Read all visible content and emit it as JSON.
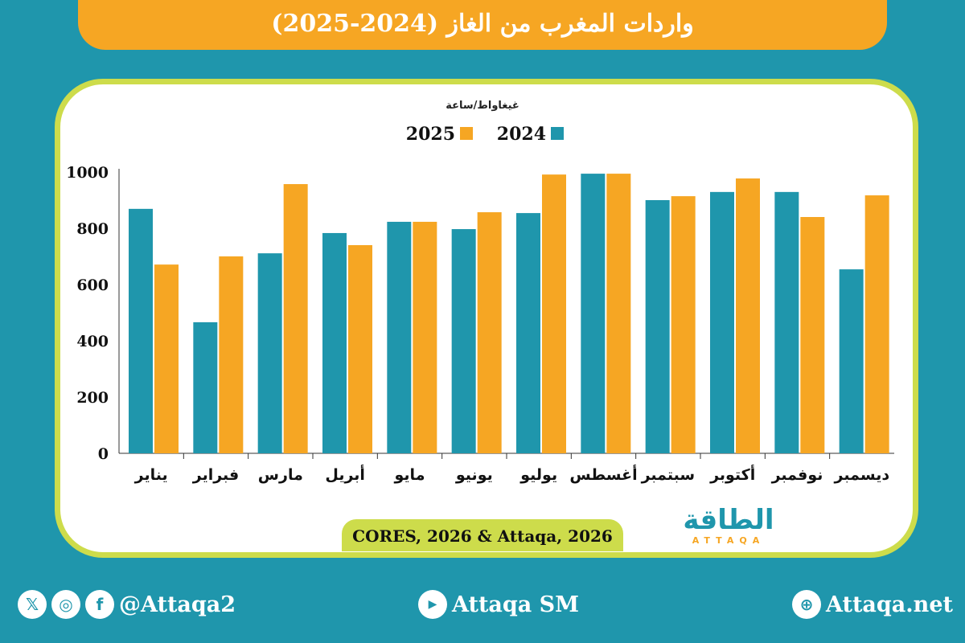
{
  "title": "واردات المغرب من الغاز (2024-2025)",
  "source": "CORES, 2026 & Attaqa, 2026",
  "logo": {
    "arabic": "الطاقة",
    "latin": "ATTAQA"
  },
  "footer": {
    "social_handle": "@Attaqa2",
    "youtube": "Attaqa SM",
    "website": "Attaqa.net"
  },
  "colors": {
    "series_2024": "#1f96ac",
    "series_2025": "#f6a623",
    "background": "#1f96ac",
    "border": "#cddc4b"
  },
  "chart_data": {
    "type": "bar",
    "ylabel": "غيغاواط/ساعة",
    "ylim": [
      0,
      1000
    ],
    "yticks": [
      0,
      200,
      400,
      600,
      800,
      1000
    ],
    "legend_position": "top-center",
    "categories": [
      "يناير",
      "فبراير",
      "مارس",
      "أبريل",
      "مايو",
      "يونيو",
      "يوليو",
      "أغسطس",
      "سبتمبر",
      "أكتوبر",
      "نوفمبر",
      "ديسمبر"
    ],
    "series": [
      {
        "name": "2024",
        "color": "#1f96ac",
        "values": [
          869,
          466,
          711,
          783,
          823,
          797,
          854,
          994,
          900,
          929,
          929,
          654
        ]
      },
      {
        "name": "2025",
        "color": "#f6a623",
        "values": [
          671,
          700,
          957,
          740,
          823,
          857,
          991,
          994,
          914,
          977,
          840,
          917
        ]
      }
    ]
  }
}
